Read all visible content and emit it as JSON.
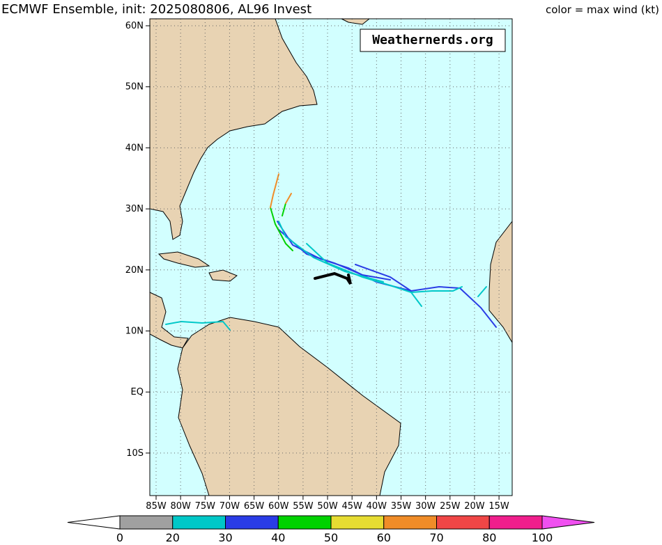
{
  "header": {
    "title": "ECMWF Ensemble, init: 2025080806, AL96 Invest",
    "legend_note": "color = max wind (kt)"
  },
  "watermark": "Weathernerds.org",
  "map": {
    "lat_ticks": [
      {
        "value": 60,
        "label": "60N"
      },
      {
        "value": 50,
        "label": "50N"
      },
      {
        "value": 40,
        "label": "40N"
      },
      {
        "value": 30,
        "label": "30N"
      },
      {
        "value": 20,
        "label": "20N"
      },
      {
        "value": 10,
        "label": "10N"
      },
      {
        "value": 0,
        "label": "EQ"
      },
      {
        "value": -10,
        "label": "10S"
      }
    ],
    "lon_ticks": [
      {
        "value": -85,
        "label": "85W"
      },
      {
        "value": -80,
        "label": "80W"
      },
      {
        "value": -75,
        "label": "75W"
      },
      {
        "value": -70,
        "label": "70W"
      },
      {
        "value": -65,
        "label": "65W"
      },
      {
        "value": -60,
        "label": "60W"
      },
      {
        "value": -55,
        "label": "55W"
      },
      {
        "value": -50,
        "label": "50W"
      },
      {
        "value": -45,
        "label": "45W"
      },
      {
        "value": -40,
        "label": "40W"
      },
      {
        "value": -35,
        "label": "35W"
      },
      {
        "value": -30,
        "label": "30W"
      },
      {
        "value": -25,
        "label": "25W"
      },
      {
        "value": -20,
        "label": "20W"
      },
      {
        "value": -15,
        "label": "15W"
      }
    ]
  },
  "colorbar": {
    "levels": [
      0,
      20,
      30,
      40,
      50,
      60,
      70,
      80,
      100
    ],
    "colors": [
      "#a0a0a0",
      "#00c8c8",
      "#2a3ce6",
      "#00d200",
      "#e6dc32",
      "#f08c28",
      "#f04646",
      "#f01e8c",
      "#f050f0"
    ]
  }
}
